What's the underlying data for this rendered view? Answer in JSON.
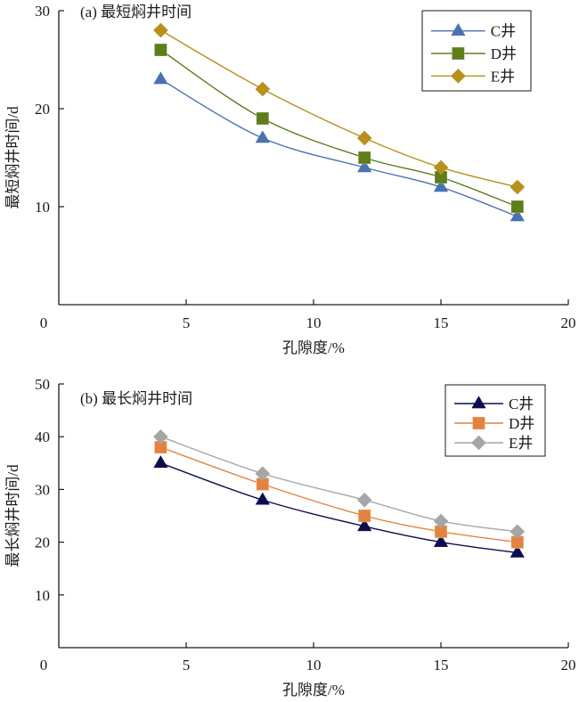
{
  "chart_data": [
    {
      "type": "line",
      "title": "(a) 最短焖井时间",
      "xlabel": "孔隙度/%",
      "ylabel": "最短焖井时间/d",
      "xlim": [
        0,
        20
      ],
      "ylim": [
        0,
        30
      ],
      "xticks": [
        0,
        5,
        10,
        15,
        20
      ],
      "yticks": [
        10,
        20,
        30
      ],
      "xtick_labels": [
        "0",
        "5",
        "10",
        "15",
        "20"
      ],
      "ytick_labels": [
        "10",
        "20",
        "30"
      ],
      "grid": false,
      "legend_position": "top-right",
      "x": [
        4,
        8,
        12,
        15,
        18
      ],
      "series": [
        {
          "name": "C井",
          "marker": "triangle",
          "color": "#4a72b0",
          "values": [
            23,
            17,
            14,
            12,
            9
          ]
        },
        {
          "name": "D井",
          "marker": "square",
          "color": "#5f7d1a",
          "values": [
            26,
            19,
            15,
            13,
            10
          ]
        },
        {
          "name": "E井",
          "marker": "diamond",
          "color": "#b8901a",
          "values": [
            28,
            22,
            17,
            14,
            12
          ]
        }
      ]
    },
    {
      "type": "line",
      "title": "(b) 最长焖井时间",
      "xlabel": "孔隙度/%",
      "ylabel": "最长焖井时间/d",
      "xlim": [
        0,
        20
      ],
      "ylim": [
        0,
        50
      ],
      "xticks": [
        0,
        5,
        10,
        15,
        20
      ],
      "yticks": [
        10,
        20,
        30,
        40,
        50
      ],
      "xtick_labels": [
        "0",
        "5",
        "10",
        "15",
        "20"
      ],
      "ytick_labels": [
        "10",
        "20",
        "30",
        "40",
        "50"
      ],
      "grid": false,
      "legend_position": "top-right",
      "x": [
        4,
        8,
        12,
        15,
        18
      ],
      "series": [
        {
          "name": "C井",
          "marker": "triangle",
          "color": "#0d0d4d",
          "values": [
            35,
            28,
            23,
            20,
            18
          ]
        },
        {
          "name": "D井",
          "marker": "square",
          "color": "#e4833f",
          "values": [
            38,
            31,
            25,
            22,
            20
          ]
        },
        {
          "name": "E井",
          "marker": "diamond",
          "color": "#a6a6a6",
          "values": [
            40,
            33,
            28,
            24,
            22
          ]
        }
      ]
    }
  ]
}
